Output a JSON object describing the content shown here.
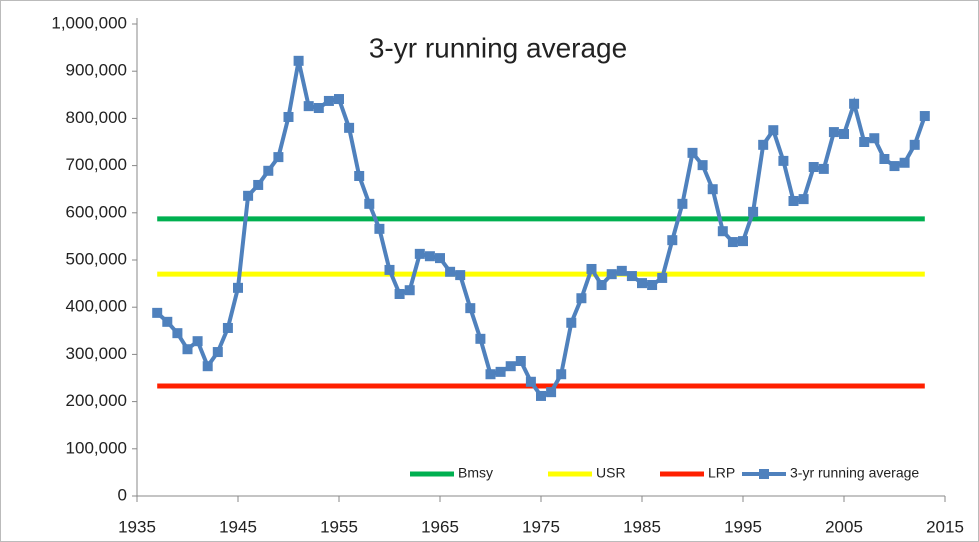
{
  "chart_data": {
    "type": "line",
    "title": "3-yr running average",
    "series": [
      {
        "name": "Bmsy",
        "color": "#00b050",
        "x": [
          1937,
          2013
        ],
        "values": [
          587000,
          587000
        ]
      },
      {
        "name": "USR",
        "color": "#ffff00",
        "x": [
          1937,
          2013
        ],
        "values": [
          470000,
          470000
        ]
      },
      {
        "name": "LRP",
        "color": "#ff2000",
        "x": [
          1937,
          2013
        ],
        "values": [
          233000,
          233000
        ]
      },
      {
        "name": "3-yr running average",
        "color": "#4f81bd",
        "marker": "square",
        "x": [
          1937,
          1938,
          1939,
          1940,
          1941,
          1942,
          1943,
          1944,
          1945,
          1946,
          1947,
          1948,
          1949,
          1950,
          1951,
          1952,
          1953,
          1954,
          1955,
          1956,
          1957,
          1958,
          1959,
          1960,
          1961,
          1962,
          1963,
          1964,
          1965,
          1966,
          1967,
          1968,
          1969,
          1970,
          1971,
          1972,
          1973,
          1974,
          1975,
          1976,
          1977,
          1978,
          1979,
          1980,
          1981,
          1982,
          1983,
          1984,
          1985,
          1986,
          1987,
          1988,
          1989,
          1990,
          1991,
          1992,
          1993,
          1994,
          1995,
          1996,
          1997,
          1998,
          1999,
          2000,
          2001,
          2002,
          2003,
          2004,
          2005,
          2006,
          2007,
          2008,
          2009,
          2010,
          2011,
          2012,
          2013
        ],
        "values": [
          388000,
          369000,
          345000,
          311000,
          328000,
          275000,
          305000,
          356000,
          441000,
          636000,
          659000,
          689000,
          718000,
          803000,
          922000,
          826000,
          822000,
          837000,
          841000,
          780000,
          678000,
          619000,
          566000,
          479000,
          428000,
          436000,
          513000,
          508000,
          504000,
          475000,
          468000,
          398000,
          333000,
          258000,
          263000,
          275000,
          286000,
          242000,
          212000,
          220000,
          258000,
          367000,
          419000,
          481000,
          447000,
          470000,
          477000,
          466000,
          451000,
          447000,
          462000,
          542000,
          619000,
          727000,
          701000,
          650000,
          561000,
          538000,
          540000,
          602000,
          744000,
          775000,
          710000,
          625000,
          629000,
          697000,
          693000,
          771000,
          767000,
          831000,
          750000,
          758000,
          714000,
          699000,
          706000,
          744000,
          805000
        ]
      }
    ],
    "xlim": [
      1935,
      2015
    ],
    "xticks": [
      1935,
      1945,
      1955,
      1965,
      1975,
      1985,
      1995,
      2005,
      2015
    ],
    "ylim": [
      0,
      1000000
    ],
    "yticks": [
      0,
      {
        "value": 100000,
        "label": "100,000"
      },
      {
        "value": 200000,
        "label": "200,000"
      },
      {
        "value": 300000,
        "label": "300,000"
      },
      {
        "value": 400000,
        "label": "400,000"
      },
      {
        "value": 500000,
        "label": "500,000"
      },
      {
        "value": 600000,
        "label": "600,000"
      },
      {
        "value": 700000,
        "label": "700,000"
      },
      {
        "value": 800000,
        "label": "800,000"
      },
      {
        "value": 900000,
        "label": "900,000"
      },
      {
        "value": 1000000,
        "label": "1,000,000"
      }
    ],
    "grid": false,
    "legend": "bottom-right"
  }
}
